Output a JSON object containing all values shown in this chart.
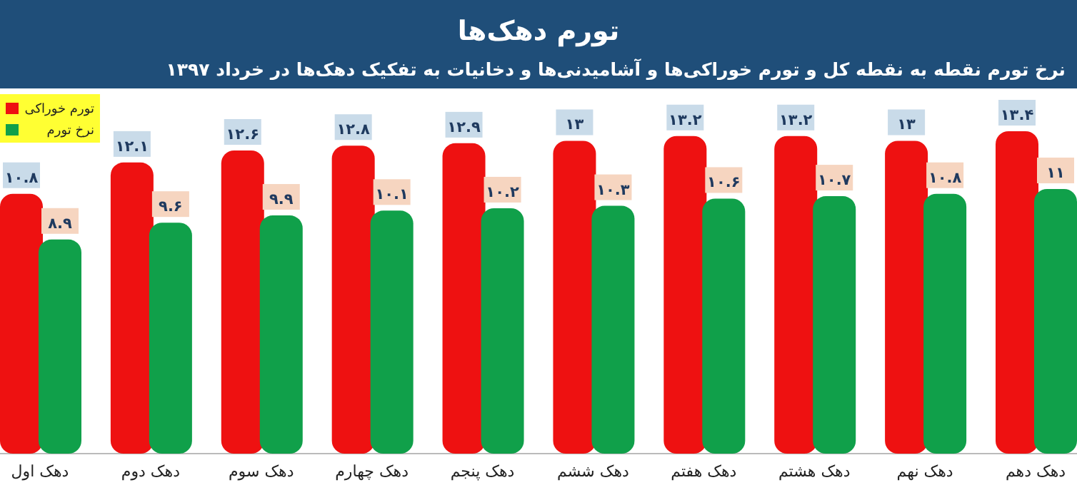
{
  "chart_data": {
    "type": "bar",
    "title": "تورم دهک‌ها",
    "subtitle": "نرخ تورم نقطه به نقطه کل و تورم خوراکی‌ها و آشامیدنی‌ها و دخانیات به تفکیک دهک‌ها در خرداد ۱۳۹۷",
    "categories": [
      "دهک اول",
      "دهک دوم",
      "دهک سوم",
      "دهک چهارم",
      "دهک پنجم",
      "دهک ششم",
      "دهک هفتم",
      "دهک هشتم",
      "دهک نهم",
      "دهک دهم"
    ],
    "series": [
      {
        "name": "تورم خوراکی",
        "color": "#ee1111",
        "values": [
          10.8,
          12.1,
          12.6,
          12.8,
          12.9,
          13,
          13.2,
          13.2,
          13,
          13.4
        ],
        "value_labels": [
          "۱۰.۸",
          "۱۲.۱",
          "۱۲.۶",
          "۱۲.۸",
          "۱۲.۹",
          "۱۳",
          "۱۳.۲",
          "۱۳.۲",
          "۱۳",
          "۱۳.۴"
        ]
      },
      {
        "name": "نرخ تورم",
        "color": "#10a04a",
        "values": [
          8.9,
          9.6,
          9.9,
          10.1,
          10.2,
          10.3,
          10.6,
          10.7,
          10.8,
          11
        ],
        "value_labels": [
          "۸.۹",
          "۹.۶",
          "۹.۹",
          "۱۰.۱",
          "۱۰.۲",
          "۱۰.۳",
          "۱۰.۶",
          "۱۰.۷",
          "۱۰.۸",
          "۱۱"
        ]
      }
    ],
    "legend": "top left"
  }
}
